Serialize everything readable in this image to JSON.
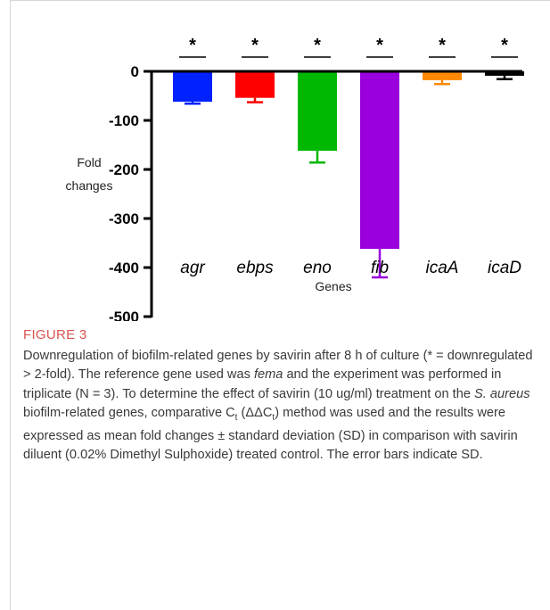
{
  "chart_data": {
    "type": "bar",
    "categories": [
      "agr",
      "ebps",
      "eno",
      "fib",
      "icaA",
      "icaD"
    ],
    "values": [
      -62,
      -54,
      -162,
      -362,
      -18,
      -9
    ],
    "error": [
      4,
      9,
      24,
      58,
      8,
      7
    ],
    "significance": [
      "*",
      "*",
      "*",
      "*",
      "*",
      "*"
    ],
    "colors": [
      "#0022ff",
      "#ff0000",
      "#00b800",
      "#9900dd",
      "#ff8a00",
      "#000000"
    ],
    "ylabel_line1": "Fold",
    "ylabel_line2": "changes",
    "xlabel": "Genes",
    "ylim": [
      -500,
      0
    ],
    "yticks": [
      0,
      -100,
      -200,
      -300,
      -400,
      -500
    ],
    "grid": false
  },
  "figure": {
    "label": "FIGURE 3",
    "caption": {
      "p1": "Downregulation of biofilm-related genes by savirin after 8 h of culture (* = downregulated > 2-fold). The reference gene used was ",
      "fema": "fema",
      "p2": " and the experiment was performed in triplicate (N = 3). To determine the effect of savirin (10 ug/ml) treatment on the ",
      "species": "S. aureus",
      "p3": " biofilm-related genes, comparative C",
      "sub1": "t",
      "p4": " (ΔΔC",
      "sub2": "t",
      "p5": ") method was used and the results were expressed as mean fold changes ± standard deviation (SD) in comparison with savirin diluent (0.02% Dimethyl Sulphoxide) treated control. The error bars indicate SD."
    }
  }
}
